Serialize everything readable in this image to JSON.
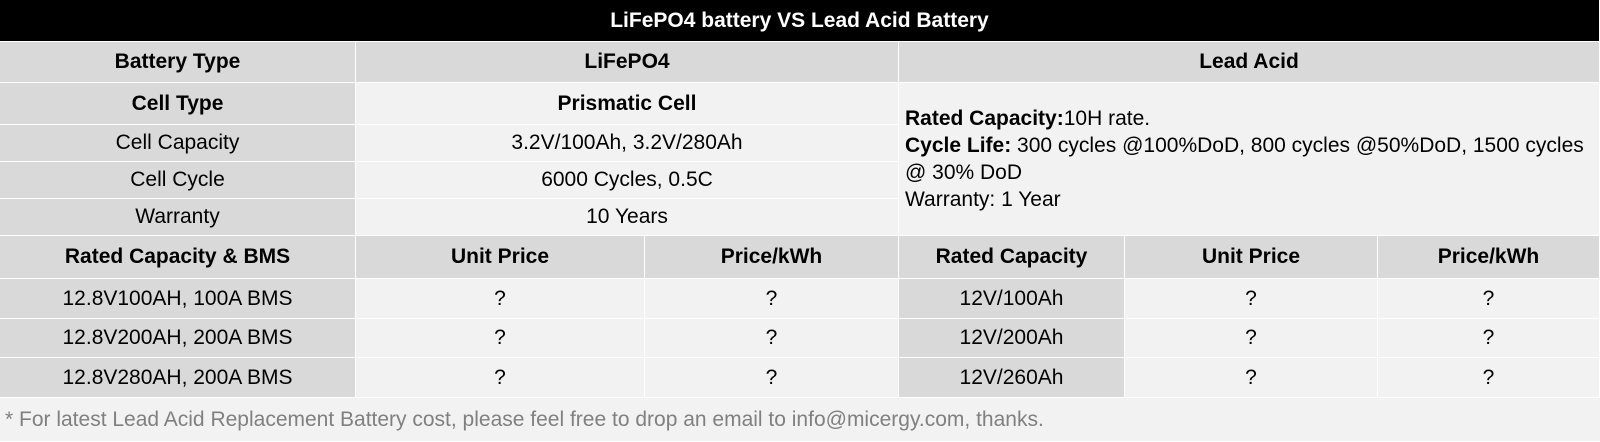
{
  "title": "LiFePO4 battery VS Lead Acid Battery",
  "header": {
    "battery_type": "Battery Type",
    "lifepo4": "LiFePO4",
    "lead_acid": "Lead Acid"
  },
  "lifepo4_specs": {
    "cell_type_label": "Cell Type",
    "cell_type_value": "Prismatic Cell",
    "capacity_label": "Cell Capacity",
    "capacity_value": "3.2V/100Ah, 3.2V/280Ah",
    "cycle_label": "Cell Cycle",
    "cycle_value": "6000 Cycles, 0.5C",
    "warranty_label": "Warranty",
    "warranty_value": "10 Years"
  },
  "lead_acid_specs": {
    "rated_capacity_label": "Rated Capacity:",
    "rated_capacity_value": "10H rate.",
    "cycle_life_label": "Cycle Life:",
    "cycle_life_value": " 300 cycles @100%DoD, 800 cycles @50%DoD, 1500 cycles @ 30% DoD",
    "warranty": "Warranty: 1 Year"
  },
  "price_headers": {
    "lfp_capacity": "Rated Capacity & BMS",
    "lfp_unit_price": "Unit Price",
    "lfp_price_kwh": "Price/kWh",
    "la_capacity": "Rated Capacity",
    "la_unit_price": "Unit Price",
    "la_price_kwh": "Price/kWh"
  },
  "rows": [
    {
      "lfp_capacity": "12.8V100AH, 100A BMS",
      "lfp_unit_price": "?",
      "lfp_price_kwh": "?",
      "la_capacity": "12V/100Ah",
      "la_unit_price": "?",
      "la_price_kwh": "?"
    },
    {
      "lfp_capacity": "12.8V200AH, 200A BMS",
      "lfp_unit_price": "?",
      "lfp_price_kwh": "?",
      "la_capacity": "12V/200Ah",
      "la_unit_price": "?",
      "la_price_kwh": "?"
    },
    {
      "lfp_capacity": "12.8V280AH, 200A BMS",
      "lfp_unit_price": "?",
      "lfp_price_kwh": "?",
      "la_capacity": "12V/260Ah",
      "la_unit_price": "?",
      "la_price_kwh": "?"
    }
  ],
  "footnote": "* For latest Lead Acid Replacement Battery cost, please feel free to drop an email to info@micergy.com, thanks."
}
